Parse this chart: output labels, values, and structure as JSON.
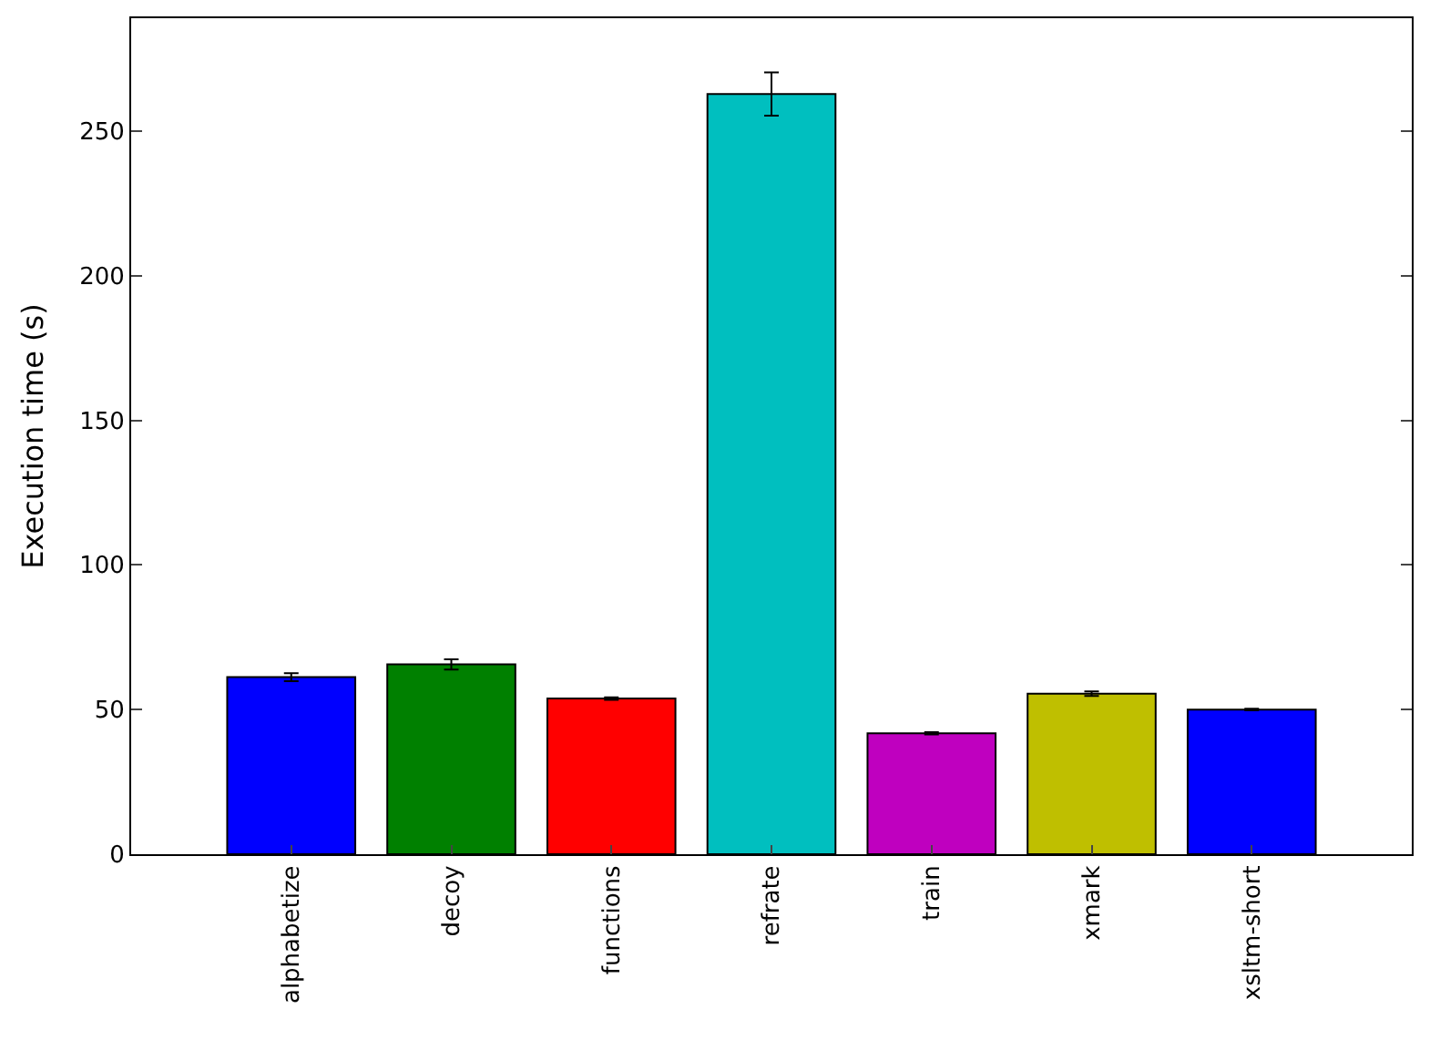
{
  "chart_data": {
    "type": "bar",
    "ylabel": "Execution time (s)",
    "categories": [
      "alphabetize",
      "decoy",
      "functions",
      "refrate",
      "train",
      "xmark",
      "xsltm-short"
    ],
    "values": [
      61.2,
      65.6,
      53.8,
      262.8,
      41.8,
      55.5,
      50.0
    ],
    "errors": [
      1.4,
      1.8,
      0.4,
      7.5,
      0.4,
      0.8,
      0.3
    ],
    "colors": [
      "#0000ff",
      "#008000",
      "#ff0000",
      "#00bfbf",
      "#bf00bf",
      "#bfbf00",
      "#0000ff"
    ],
    "ylim": [
      0,
      289
    ],
    "yticks": [
      0,
      50,
      100,
      150,
      200,
      250
    ]
  }
}
